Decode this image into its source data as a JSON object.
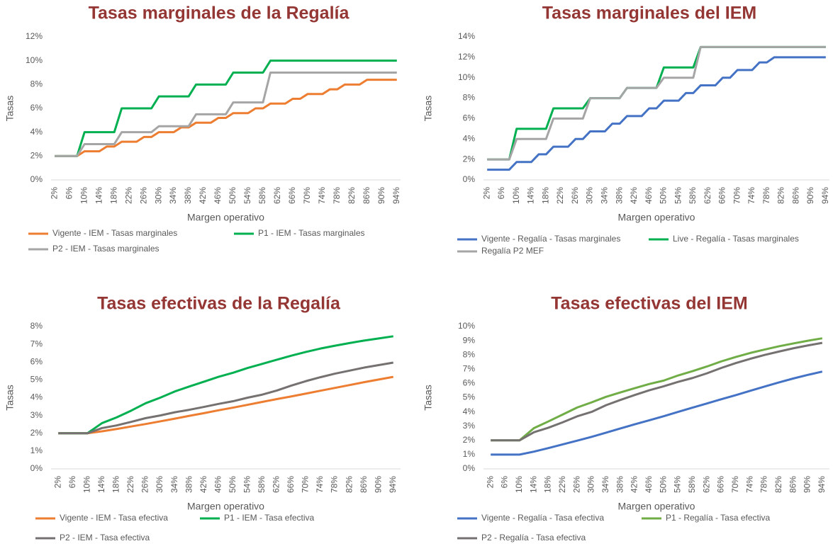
{
  "chart_data": [
    {
      "type": "line",
      "title": "Tasas marginales de la Regalía",
      "x_label": "Margen operativo",
      "y_label": "Tasas",
      "categories": [
        "2%",
        null,
        "6%",
        null,
        "10%",
        null,
        "14%",
        null,
        "18%",
        null,
        "22%",
        null,
        "26%",
        null,
        "30%",
        null,
        "34%",
        null,
        "38%",
        null,
        "42%",
        null,
        "46%",
        null,
        "50%",
        null,
        "54%",
        null,
        "58%",
        null,
        "62%",
        null,
        "66%",
        null,
        "70%",
        null,
        "74%",
        null,
        "78%",
        null,
        "82%",
        null,
        "86%",
        null,
        "90%",
        null,
        "94%"
      ],
      "ylim": [
        0,
        12
      ],
      "yticks": [
        {
          "value": 0,
          "label": "0%"
        },
        {
          "value": 2,
          "label": "2%"
        },
        {
          "value": 4,
          "label": "4%"
        },
        {
          "value": 6,
          "label": "6%"
        },
        {
          "value": 8,
          "label": "8%"
        },
        {
          "value": 10,
          "label": "10%"
        },
        {
          "value": 12,
          "label": "12%"
        }
      ],
      "grid": false,
      "series": [
        {
          "name": "Vigente - IEM - Tasas marginales",
          "color": "#ed7d31",
          "values": [
            2,
            2,
            2,
            2,
            2.4,
            2.4,
            2.4,
            2.8,
            2.8,
            3.2,
            3.2,
            3.2,
            3.6,
            3.6,
            4,
            4,
            4,
            4.4,
            4.4,
            4.8,
            4.8,
            4.8,
            5.2,
            5.2,
            5.6,
            5.6,
            5.6,
            6,
            6,
            6.4,
            6.4,
            6.4,
            6.8,
            6.8,
            7.2,
            7.2,
            7.2,
            7.6,
            7.6,
            8,
            8,
            8,
            8.4,
            8.4,
            8.4,
            8.4,
            8.4
          ]
        },
        {
          "name": "P1 - IEM - Tasas marginales",
          "color": "#00b050",
          "values": [
            2,
            2,
            2,
            2,
            4,
            4,
            4,
            4,
            4,
            6,
            6,
            6,
            6,
            6,
            7,
            7,
            7,
            7,
            7,
            8,
            8,
            8,
            8,
            8,
            9,
            9,
            9,
            9,
            9,
            10,
            10,
            10,
            10,
            10,
            10,
            10,
            10,
            10,
            10,
            10,
            10,
            10,
            10,
            10,
            10,
            10,
            10
          ]
        },
        {
          "name": "P2 - IEM - Tasas marginales",
          "color": "#a5a5a5",
          "values": [
            2,
            2,
            2,
            2,
            3,
            3,
            3,
            3,
            3,
            4,
            4,
            4,
            4,
            4,
            4.5,
            4.5,
            4.5,
            4.5,
            4.5,
            5.5,
            5.5,
            5.5,
            5.5,
            5.5,
            6.5,
            6.5,
            6.5,
            6.5,
            6.5,
            9,
            9,
            9,
            9,
            9,
            9,
            9,
            9,
            9,
            9,
            9,
            9,
            9,
            9,
            9,
            9,
            9,
            9
          ]
        }
      ]
    },
    {
      "type": "line",
      "title": "Tasas marginales del IEM",
      "x_label": "Margen operativo",
      "y_label": "Tasas",
      "categories": [
        "2%",
        null,
        "6%",
        null,
        "10%",
        null,
        "14%",
        null,
        "18%",
        null,
        "22%",
        null,
        "26%",
        null,
        "30%",
        null,
        "34%",
        null,
        "38%",
        null,
        "42%",
        null,
        "46%",
        null,
        "50%",
        null,
        "54%",
        null,
        "58%",
        null,
        "62%",
        null,
        "66%",
        null,
        "70%",
        null,
        "74%",
        null,
        "78%",
        null,
        "82%",
        null,
        "86%",
        null,
        "90%",
        null,
        "94%"
      ],
      "ylim": [
        0,
        14
      ],
      "yticks": [
        {
          "value": 0,
          "label": "0%"
        },
        {
          "value": 2,
          "label": "2%"
        },
        {
          "value": 4,
          "label": "4%"
        },
        {
          "value": 6,
          "label": "6%"
        },
        {
          "value": 8,
          "label": "8%"
        },
        {
          "value": 10,
          "label": "10%"
        },
        {
          "value": 12,
          "label": "12%"
        },
        {
          "value": 14,
          "label": "14%"
        }
      ],
      "grid": false,
      "series": [
        {
          "name": "Vigente - Regalía - Tasas marginales",
          "color": "#4472c4",
          "values": [
            1,
            1,
            1,
            1,
            1.75,
            1.75,
            1.75,
            2.5,
            2.5,
            3.25,
            3.25,
            3.25,
            4,
            4,
            4.75,
            4.75,
            4.75,
            5.5,
            5.5,
            6.25,
            6.25,
            6.25,
            7,
            7,
            7.75,
            7.75,
            7.75,
            8.5,
            8.5,
            9.25,
            9.25,
            9.25,
            10,
            10,
            10.75,
            10.75,
            10.75,
            11.5,
            11.5,
            12,
            12,
            12,
            12,
            12,
            12,
            12,
            12
          ]
        },
        {
          "name": "Live - Regalía - Tasas marginales",
          "color": "#00b050",
          "values": [
            2,
            2,
            2,
            2,
            5,
            5,
            5,
            5,
            5,
            7,
            7,
            7,
            7,
            7,
            8,
            8,
            8,
            8,
            8,
            9,
            9,
            9,
            9,
            9,
            11,
            11,
            11,
            11,
            11,
            13,
            13,
            13,
            13,
            13,
            13,
            13,
            13,
            13,
            13,
            13,
            13,
            13,
            13,
            13,
            13,
            13,
            13
          ]
        },
        {
          "name": "Regalía P2 MEF",
          "color": "#a5a5a5",
          "values": [
            2,
            2,
            2,
            2,
            4,
            4,
            4,
            4,
            4,
            6,
            6,
            6,
            6,
            6,
            8,
            8,
            8,
            8,
            8,
            9,
            9,
            9,
            9,
            9,
            10,
            10,
            10,
            10,
            10,
            13,
            13,
            13,
            13,
            13,
            13,
            13,
            13,
            13,
            13,
            13,
            13,
            13,
            13,
            13,
            13,
            13,
            13
          ]
        }
      ]
    },
    {
      "type": "line",
      "title": "Tasas efectivas de la Regalía",
      "x_label": "Margen operativo",
      "y_label": "Tasas",
      "categories": [
        "2%",
        "6%",
        "10%",
        "14%",
        "18%",
        "22%",
        "26%",
        "30%",
        "34%",
        "38%",
        "42%",
        "46%",
        "50%",
        "54%",
        "58%",
        "62%",
        "66%",
        "70%",
        "74%",
        "78%",
        "82%",
        "86%",
        "90%",
        "94%"
      ],
      "ylim": [
        0,
        8
      ],
      "yticks": [
        {
          "value": 0,
          "label": "0%"
        },
        {
          "value": 1,
          "label": "1%"
        },
        {
          "value": 2,
          "label": "2%"
        },
        {
          "value": 3,
          "label": "3%"
        },
        {
          "value": 4,
          "label": "4%"
        },
        {
          "value": 5,
          "label": "5%"
        },
        {
          "value": 6,
          "label": "6%"
        },
        {
          "value": 7,
          "label": "7%"
        },
        {
          "value": 8,
          "label": "8%"
        }
      ],
      "grid": false,
      "series": [
        {
          "name": "Vigente - IEM - Tasa efectiva",
          "color": "#ed7d31",
          "values": [
            2,
            2,
            2,
            2.11,
            2.24,
            2.38,
            2.52,
            2.67,
            2.82,
            2.98,
            3.13,
            3.29,
            3.44,
            3.6,
            3.76,
            3.92,
            4.07,
            4.23,
            4.39,
            4.55,
            4.71,
            4.87,
            5.02,
            5.17
          ]
        },
        {
          "name": "P1 - IEM - Tasa efectiva",
          "color": "#00b050",
          "values": [
            2,
            2,
            2,
            2.57,
            2.89,
            3.27,
            3.69,
            4,
            4.35,
            4.63,
            4.9,
            5.17,
            5.4,
            5.67,
            5.9,
            6.13,
            6.36,
            6.57,
            6.76,
            6.92,
            7.07,
            7.21,
            7.33,
            7.45
          ]
        },
        {
          "name": "P2 - IEM - Tasa efectiva",
          "color": "#767171",
          "values": [
            2,
            2,
            2,
            2.29,
            2.44,
            2.64,
            2.85,
            3,
            3.18,
            3.32,
            3.48,
            3.65,
            3.8,
            4,
            4.17,
            4.4,
            4.68,
            4.93,
            5.15,
            5.35,
            5.52,
            5.69,
            5.83,
            5.97
          ]
        }
      ]
    },
    {
      "type": "line",
      "title": "Tasas efectivas del IEM",
      "x_label": "Margen operativo",
      "y_label": "Tasas",
      "categories": [
        "2%",
        "6%",
        "10%",
        "14%",
        "18%",
        "22%",
        "26%",
        "30%",
        "34%",
        "38%",
        "42%",
        "46%",
        "50%",
        "54%",
        "58%",
        "62%",
        "66%",
        "70%",
        "74%",
        "78%",
        "82%",
        "86%",
        "90%",
        "94%"
      ],
      "ylim": [
        0,
        10
      ],
      "yticks": [
        {
          "value": 0,
          "label": "0%"
        },
        {
          "value": 1,
          "label": "1%"
        },
        {
          "value": 2,
          "label": "2%"
        },
        {
          "value": 3,
          "label": "3%"
        },
        {
          "value": 4,
          "label": "4%"
        },
        {
          "value": 5,
          "label": "5%"
        },
        {
          "value": 6,
          "label": "6%"
        },
        {
          "value": 7,
          "label": "7%"
        },
        {
          "value": 8,
          "label": "8%"
        },
        {
          "value": 9,
          "label": "9%"
        },
        {
          "value": 10,
          "label": "10%"
        }
      ],
      "grid": false,
      "series": [
        {
          "name": "Vigente - Regalía - Tasa efectiva",
          "color": "#4472c4",
          "values": [
            1,
            1,
            1,
            1.21,
            1.46,
            1.72,
            1.98,
            2.25,
            2.54,
            2.84,
            3.13,
            3.41,
            3.7,
            4,
            4.3,
            4.59,
            4.89,
            5.18,
            5.48,
            5.78,
            6.07,
            6.35,
            6.6,
            6.83
          ]
        },
        {
          "name": "P1 - Regalía - Tasa efectiva",
          "color": "#70ad47",
          "values": [
            2,
            2,
            2,
            2.86,
            3.33,
            3.82,
            4.31,
            4.67,
            5.06,
            5.37,
            5.67,
            5.96,
            6.2,
            6.56,
            6.86,
            7.19,
            7.55,
            7.86,
            8.14,
            8.38,
            8.61,
            8.81,
            9,
            9.17
          ]
        },
        {
          "name": "P2 - Regalía - Tasa efectiva",
          "color": "#767171",
          "values": [
            2,
            2,
            2,
            2.57,
            2.89,
            3.27,
            3.69,
            4,
            4.47,
            4.84,
            5.19,
            5.52,
            5.8,
            6.11,
            6.38,
            6.71,
            7.09,
            7.43,
            7.73,
            8,
            8.24,
            8.47,
            8.67,
            8.85
          ]
        }
      ]
    }
  ]
}
